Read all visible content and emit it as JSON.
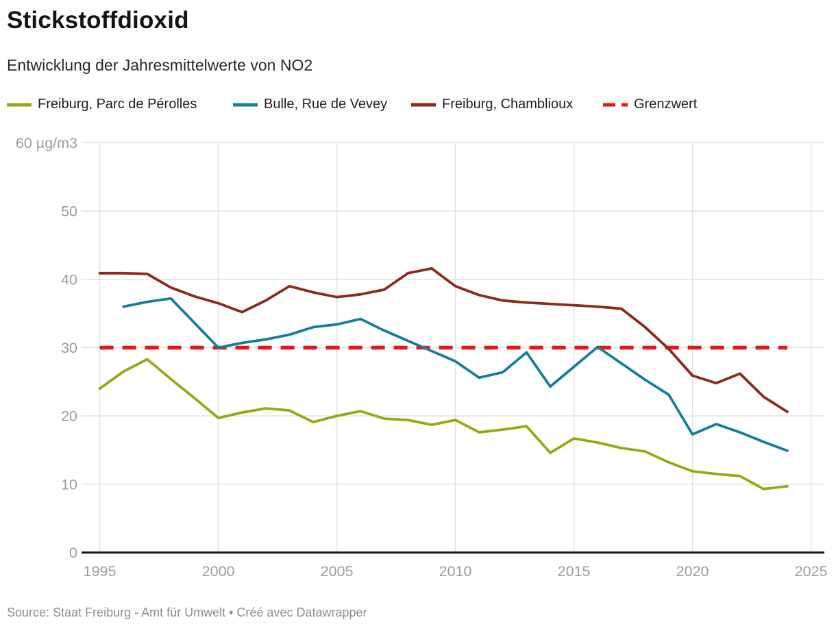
{
  "header": {
    "title": "Stickstoffdioxid",
    "subtitle": "Entwicklung der Jahresmittelwerte von NO2"
  },
  "legend": [
    {
      "label": "Freiburg, Parc de Pérolles",
      "color": "#9ba616",
      "dashed": false
    },
    {
      "label": "Bulle, Rue de Vevey",
      "color": "#177e99",
      "dashed": false
    },
    {
      "label": "Freiburg, Chamblioux",
      "color": "#8e2a1c",
      "dashed": false
    },
    {
      "label": "Grenzwert",
      "color": "#ee1313",
      "dashed": true
    }
  ],
  "chart_data": {
    "type": "line",
    "x": [
      1995,
      1996,
      1997,
      1998,
      1999,
      2000,
      2001,
      2002,
      2003,
      2004,
      2005,
      2006,
      2007,
      2008,
      2009,
      2010,
      2011,
      2012,
      2013,
      2014,
      2015,
      2016,
      2017,
      2018,
      2019,
      2020,
      2021,
      2022,
      2023,
      2024
    ],
    "series": [
      {
        "name": "Freiburg, Parc de Pérolles",
        "color": "#9ba616",
        "values": [
          24.0,
          26.5,
          28.3,
          25.4,
          22.6,
          19.7,
          20.5,
          21.1,
          20.8,
          19.1,
          20.0,
          20.7,
          19.6,
          19.4,
          18.7,
          19.4,
          17.6,
          18.0,
          18.5,
          14.6,
          16.7,
          16.1,
          15.3,
          14.8,
          13.2,
          11.9,
          11.5,
          11.2,
          9.3,
          9.7
        ]
      },
      {
        "name": "Bulle, Rue de Vevey",
        "color": "#177e99",
        "values": [
          null,
          36.0,
          36.7,
          37.2,
          33.6,
          30.0,
          30.7,
          31.2,
          31.9,
          33.0,
          33.4,
          34.2,
          32.5,
          31.0,
          29.5,
          28.0,
          25.6,
          26.4,
          29.3,
          24.3,
          27.2,
          30.1,
          27.7,
          25.3,
          23.1,
          17.3,
          18.8,
          17.6,
          16.2,
          14.9
        ]
      },
      {
        "name": "Freiburg, Chamblioux",
        "color": "#8e2a1c",
        "values": [
          40.9,
          40.9,
          40.8,
          38.8,
          37.5,
          36.5,
          35.2,
          36.9,
          39.0,
          38.1,
          37.4,
          37.8,
          38.5,
          40.9,
          41.6,
          39.0,
          37.7,
          36.9,
          36.6,
          36.4,
          36.2,
          36.0,
          35.7,
          33.0,
          29.8,
          25.9,
          24.8,
          26.2,
          22.8,
          20.6
        ]
      }
    ],
    "reference_line": {
      "name": "Grenzwert",
      "value": 30,
      "color": "#ee1313"
    },
    "yticks": [
      0,
      10,
      20,
      30,
      40,
      50,
      60
    ],
    "ytick_top_label": "60 µg/m3",
    "xtick_labels": [
      "1995",
      "2000",
      "2005",
      "2010",
      "2015",
      "2020",
      "2025"
    ],
    "xticks": [
      1995,
      2000,
      2005,
      2010,
      2015,
      2020,
      2025
    ],
    "xlim": [
      1995,
      2025
    ],
    "ylim": [
      0,
      60
    ],
    "grid": true,
    "legend_position": "top"
  },
  "footer": {
    "source": "Source: Staat Freiburg - Amt für Umwelt • Créé avec Datawrapper"
  },
  "style_colors": {
    "grid": "#e0e0e0",
    "axis": "#161616",
    "tick_text": "#9c9c9c"
  }
}
